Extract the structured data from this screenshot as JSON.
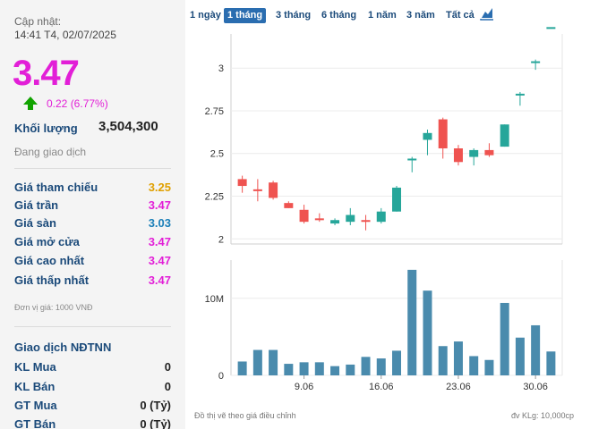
{
  "panel": {
    "update_label": "Cập nhật:",
    "update_time": "14:41 T4, 02/07/2025",
    "price": "3.47",
    "change": "0.22 (6.77%)",
    "volume_label": "Khối lượng",
    "volume_value": "3,504,300",
    "status": "Đang giao dịch",
    "price_rows": [
      {
        "label": "Giá tham chiếu",
        "value": "3.25",
        "color": "#e0a000"
      },
      {
        "label": "Giá trần",
        "value": "3.47",
        "color": "#e21fd7"
      },
      {
        "label": "Giá sàn",
        "value": "3.03",
        "color": "#1b7fb8"
      },
      {
        "label": "Giá mở cửa",
        "value": "3.47",
        "color": "#e21fd7"
      },
      {
        "label": "Giá cao nhất",
        "value": "3.47",
        "color": "#e21fd7"
      },
      {
        "label": "Giá thấp nhất",
        "value": "3.47",
        "color": "#e21fd7"
      }
    ],
    "unit_note": "Đơn vị giá: 1000 VNĐ",
    "foreign_title": "Giao dịch NĐTNN",
    "foreign_rows": [
      {
        "label": "KL Mua",
        "value": "0"
      },
      {
        "label": "KL Bán",
        "value": "0"
      },
      {
        "label": "GT Mua",
        "value": "0 (Tỷ)"
      },
      {
        "label": "GT Bán",
        "value": "0 (Tỷ)"
      }
    ]
  },
  "tabs": [
    {
      "label": "1 ngày",
      "active": false
    },
    {
      "label": "1 tháng",
      "active": true
    },
    {
      "label": "3 tháng",
      "active": false
    },
    {
      "label": "6 tháng",
      "active": false
    },
    {
      "label": "1 năm",
      "active": false
    },
    {
      "label": "3 năm",
      "active": false
    },
    {
      "label": "Tất cả",
      "active": false
    }
  ],
  "chart_icon": "area-chart-icon",
  "footer": {
    "left": "Đồ thị vẽ theo giá điều chỉnh",
    "right": "đv KLg: 10,000cp"
  },
  "chart_data": {
    "type": "candlestick",
    "price_axis": {
      "ticks": [
        "2",
        "2.25",
        "2.5",
        "2.75",
        "3"
      ],
      "min": 1.97,
      "max": 3.2
    },
    "volume_axis": {
      "ticks": [
        "0",
        "10M"
      ],
      "max": 14500000
    },
    "x_ticks": [
      {
        "label": "9.06",
        "index": 4
      },
      {
        "label": "16.06",
        "index": 9
      },
      {
        "label": "23.06",
        "index": 14
      },
      {
        "label": "30.06",
        "index": 19
      }
    ],
    "up_color": "#26a69a",
    "down_color": "#ef5350",
    "volume_color": "#4a8bad",
    "candles": [
      {
        "o": 2.35,
        "h": 2.37,
        "l": 2.27,
        "c": 2.31
      },
      {
        "o": 2.29,
        "h": 2.35,
        "l": 2.22,
        "c": 2.28
      },
      {
        "o": 2.33,
        "h": 2.34,
        "l": 2.23,
        "c": 2.24
      },
      {
        "o": 2.21,
        "h": 2.22,
        "l": 2.18,
        "c": 2.18
      },
      {
        "o": 2.17,
        "h": 2.2,
        "l": 2.09,
        "c": 2.1
      },
      {
        "o": 2.12,
        "h": 2.15,
        "l": 2.1,
        "c": 2.11
      },
      {
        "o": 2.09,
        "h": 2.12,
        "l": 2.08,
        "c": 2.11
      },
      {
        "o": 2.1,
        "h": 2.18,
        "l": 2.08,
        "c": 2.14
      },
      {
        "o": 2.11,
        "h": 2.14,
        "l": 2.05,
        "c": 2.1
      },
      {
        "o": 2.1,
        "h": 2.18,
        "l": 2.09,
        "c": 2.16
      },
      {
        "o": 2.16,
        "h": 2.31,
        "l": 2.16,
        "c": 2.3
      },
      {
        "o": 2.47,
        "h": 2.48,
        "l": 2.39,
        "c": 2.47
      },
      {
        "o": 2.58,
        "h": 2.64,
        "l": 2.49,
        "c": 2.62
      },
      {
        "o": 2.7,
        "h": 2.71,
        "l": 2.47,
        "c": 2.53
      },
      {
        "o": 2.53,
        "h": 2.55,
        "l": 2.43,
        "c": 2.45
      },
      {
        "o": 2.48,
        "h": 2.53,
        "l": 2.43,
        "c": 2.52
      },
      {
        "o": 2.52,
        "h": 2.56,
        "l": 2.48,
        "c": 2.49
      },
      {
        "o": 2.54,
        "h": 2.67,
        "l": 2.54,
        "c": 2.67
      },
      {
        "o": 2.85,
        "h": 2.86,
        "l": 2.78,
        "c": 2.85
      },
      {
        "o": 3.04,
        "h": 3.05,
        "l": 2.99,
        "c": 3.04
      },
      {
        "o": 3.24,
        "h": 3.24,
        "l": 3.24,
        "c": 3.24
      }
    ],
    "volumes": [
      1800000,
      3300000,
      3300000,
      1500000,
      1700000,
      1700000,
      1200000,
      1400000,
      2400000,
      2200000,
      3200000,
      13700000,
      11000000,
      3800000,
      4400000,
      2500000,
      2000000,
      9400000,
      4900000,
      6500000,
      3100000
    ]
  }
}
